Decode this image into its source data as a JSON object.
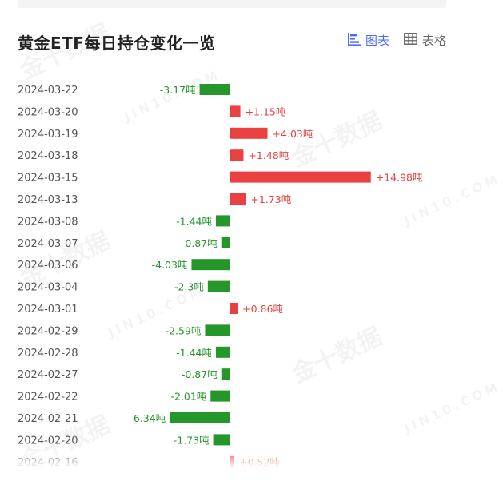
{
  "header": {
    "title": "黄金ETF每日持仓变化一览",
    "view_chart_label": "图表",
    "view_table_label": "表格"
  },
  "watermark": {
    "brand": "金十数据",
    "site": "JIN10.COM"
  },
  "colors": {
    "positive": "#e94141",
    "negative": "#24962a",
    "accent": "#4a6cf7"
  },
  "chart_data": {
    "type": "bar",
    "orientation": "horizontal",
    "unit": "吨",
    "categories": [
      "2024-03-22",
      "2024-03-20",
      "2024-03-19",
      "2024-03-18",
      "2024-03-15",
      "2024-03-13",
      "2024-03-08",
      "2024-03-07",
      "2024-03-06",
      "2024-03-04",
      "2024-03-01",
      "2024-02-29",
      "2024-02-28",
      "2024-02-27",
      "2024-02-22",
      "2024-02-21",
      "2024-02-20",
      "2024-02-16"
    ],
    "values": [
      -3.17,
      1.15,
      4.03,
      1.48,
      14.98,
      1.73,
      -1.44,
      -0.87,
      -4.03,
      -2.3,
      0.86,
      -2.59,
      -1.44,
      -0.87,
      -2.01,
      -6.34,
      -1.73,
      0.52
    ],
    "labels": [
      "-3.17吨",
      "+1.15吨",
      "+4.03吨",
      "+1.48吨",
      "+14.98吨",
      "+1.73吨",
      "-1.44吨",
      "-0.87吨",
      "-4.03吨",
      "-2.3吨",
      "+0.86吨",
      "-2.59吨",
      "-1.44吨",
      "-0.87吨",
      "-2.01吨",
      "-6.34吨",
      "-1.73吨",
      "+0.52吨"
    ],
    "xlim": [
      -10,
      15
    ],
    "grid": false,
    "legend": "none"
  }
}
